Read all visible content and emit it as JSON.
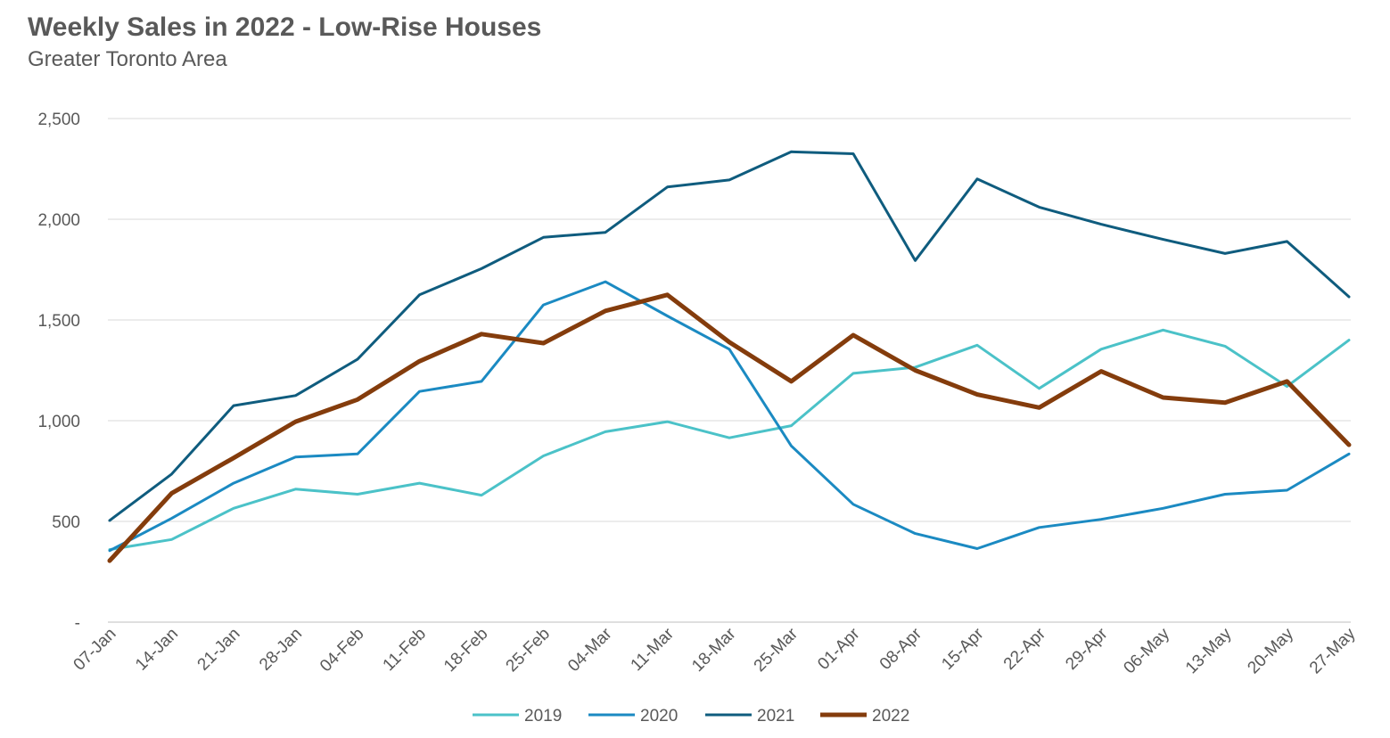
{
  "chart_data": {
    "type": "line",
    "title": "Weekly Sales in 2022 - Low-Rise Houses",
    "subtitle": "Greater Toronto Area",
    "xlabel": "",
    "ylabel": "",
    "ylim": [
      0,
      2500
    ],
    "y_ticks": [
      0,
      500,
      1000,
      1500,
      2000,
      2500
    ],
    "y_tick_labels": [
      "-",
      "500",
      "1,000",
      "1,500",
      "2,000",
      "2,500"
    ],
    "grid": true,
    "legend_position": "bottom",
    "categories": [
      "07-Jan",
      "14-Jan",
      "21-Jan",
      "28-Jan",
      "04-Feb",
      "11-Feb",
      "18-Feb",
      "25-Feb",
      "04-Mar",
      "11-Mar",
      "18-Mar",
      "25-Mar",
      "01-Apr",
      "08-Apr",
      "15-Apr",
      "22-Apr",
      "29-Apr",
      "06-May",
      "13-May",
      "20-May",
      "27-May"
    ],
    "series": [
      {
        "name": "2019",
        "color": "#4BC2C8",
        "width": 3,
        "values": [
          360,
          410,
          565,
          660,
          635,
          690,
          630,
          825,
          945,
          995,
          915,
          975,
          1235,
          1265,
          1375,
          1160,
          1355,
          1450,
          1370,
          1170,
          1400
        ]
      },
      {
        "name": "2020",
        "color": "#1B8AC2",
        "width": 3,
        "values": [
          355,
          515,
          690,
          820,
          835,
          1145,
          1195,
          1575,
          1690,
          1520,
          1355,
          875,
          585,
          440,
          365,
          470,
          510,
          565,
          635,
          655,
          835
        ]
      },
      {
        "name": "2021",
        "color": "#0F5C7E",
        "width": 3,
        "values": [
          505,
          735,
          1075,
          1125,
          1305,
          1625,
          1755,
          1910,
          1935,
          2160,
          2195,
          2335,
          2325,
          1795,
          2200,
          2060,
          1975,
          1900,
          1830,
          1890,
          1615
        ]
      },
      {
        "name": "2022",
        "color": "#843C0C",
        "width": 5,
        "values": [
          305,
          640,
          815,
          995,
          1105,
          1295,
          1430,
          1385,
          1545,
          1625,
          1390,
          1195,
          1425,
          1250,
          1130,
          1065,
          1245,
          1115,
          1090,
          1195,
          880
        ]
      }
    ]
  }
}
